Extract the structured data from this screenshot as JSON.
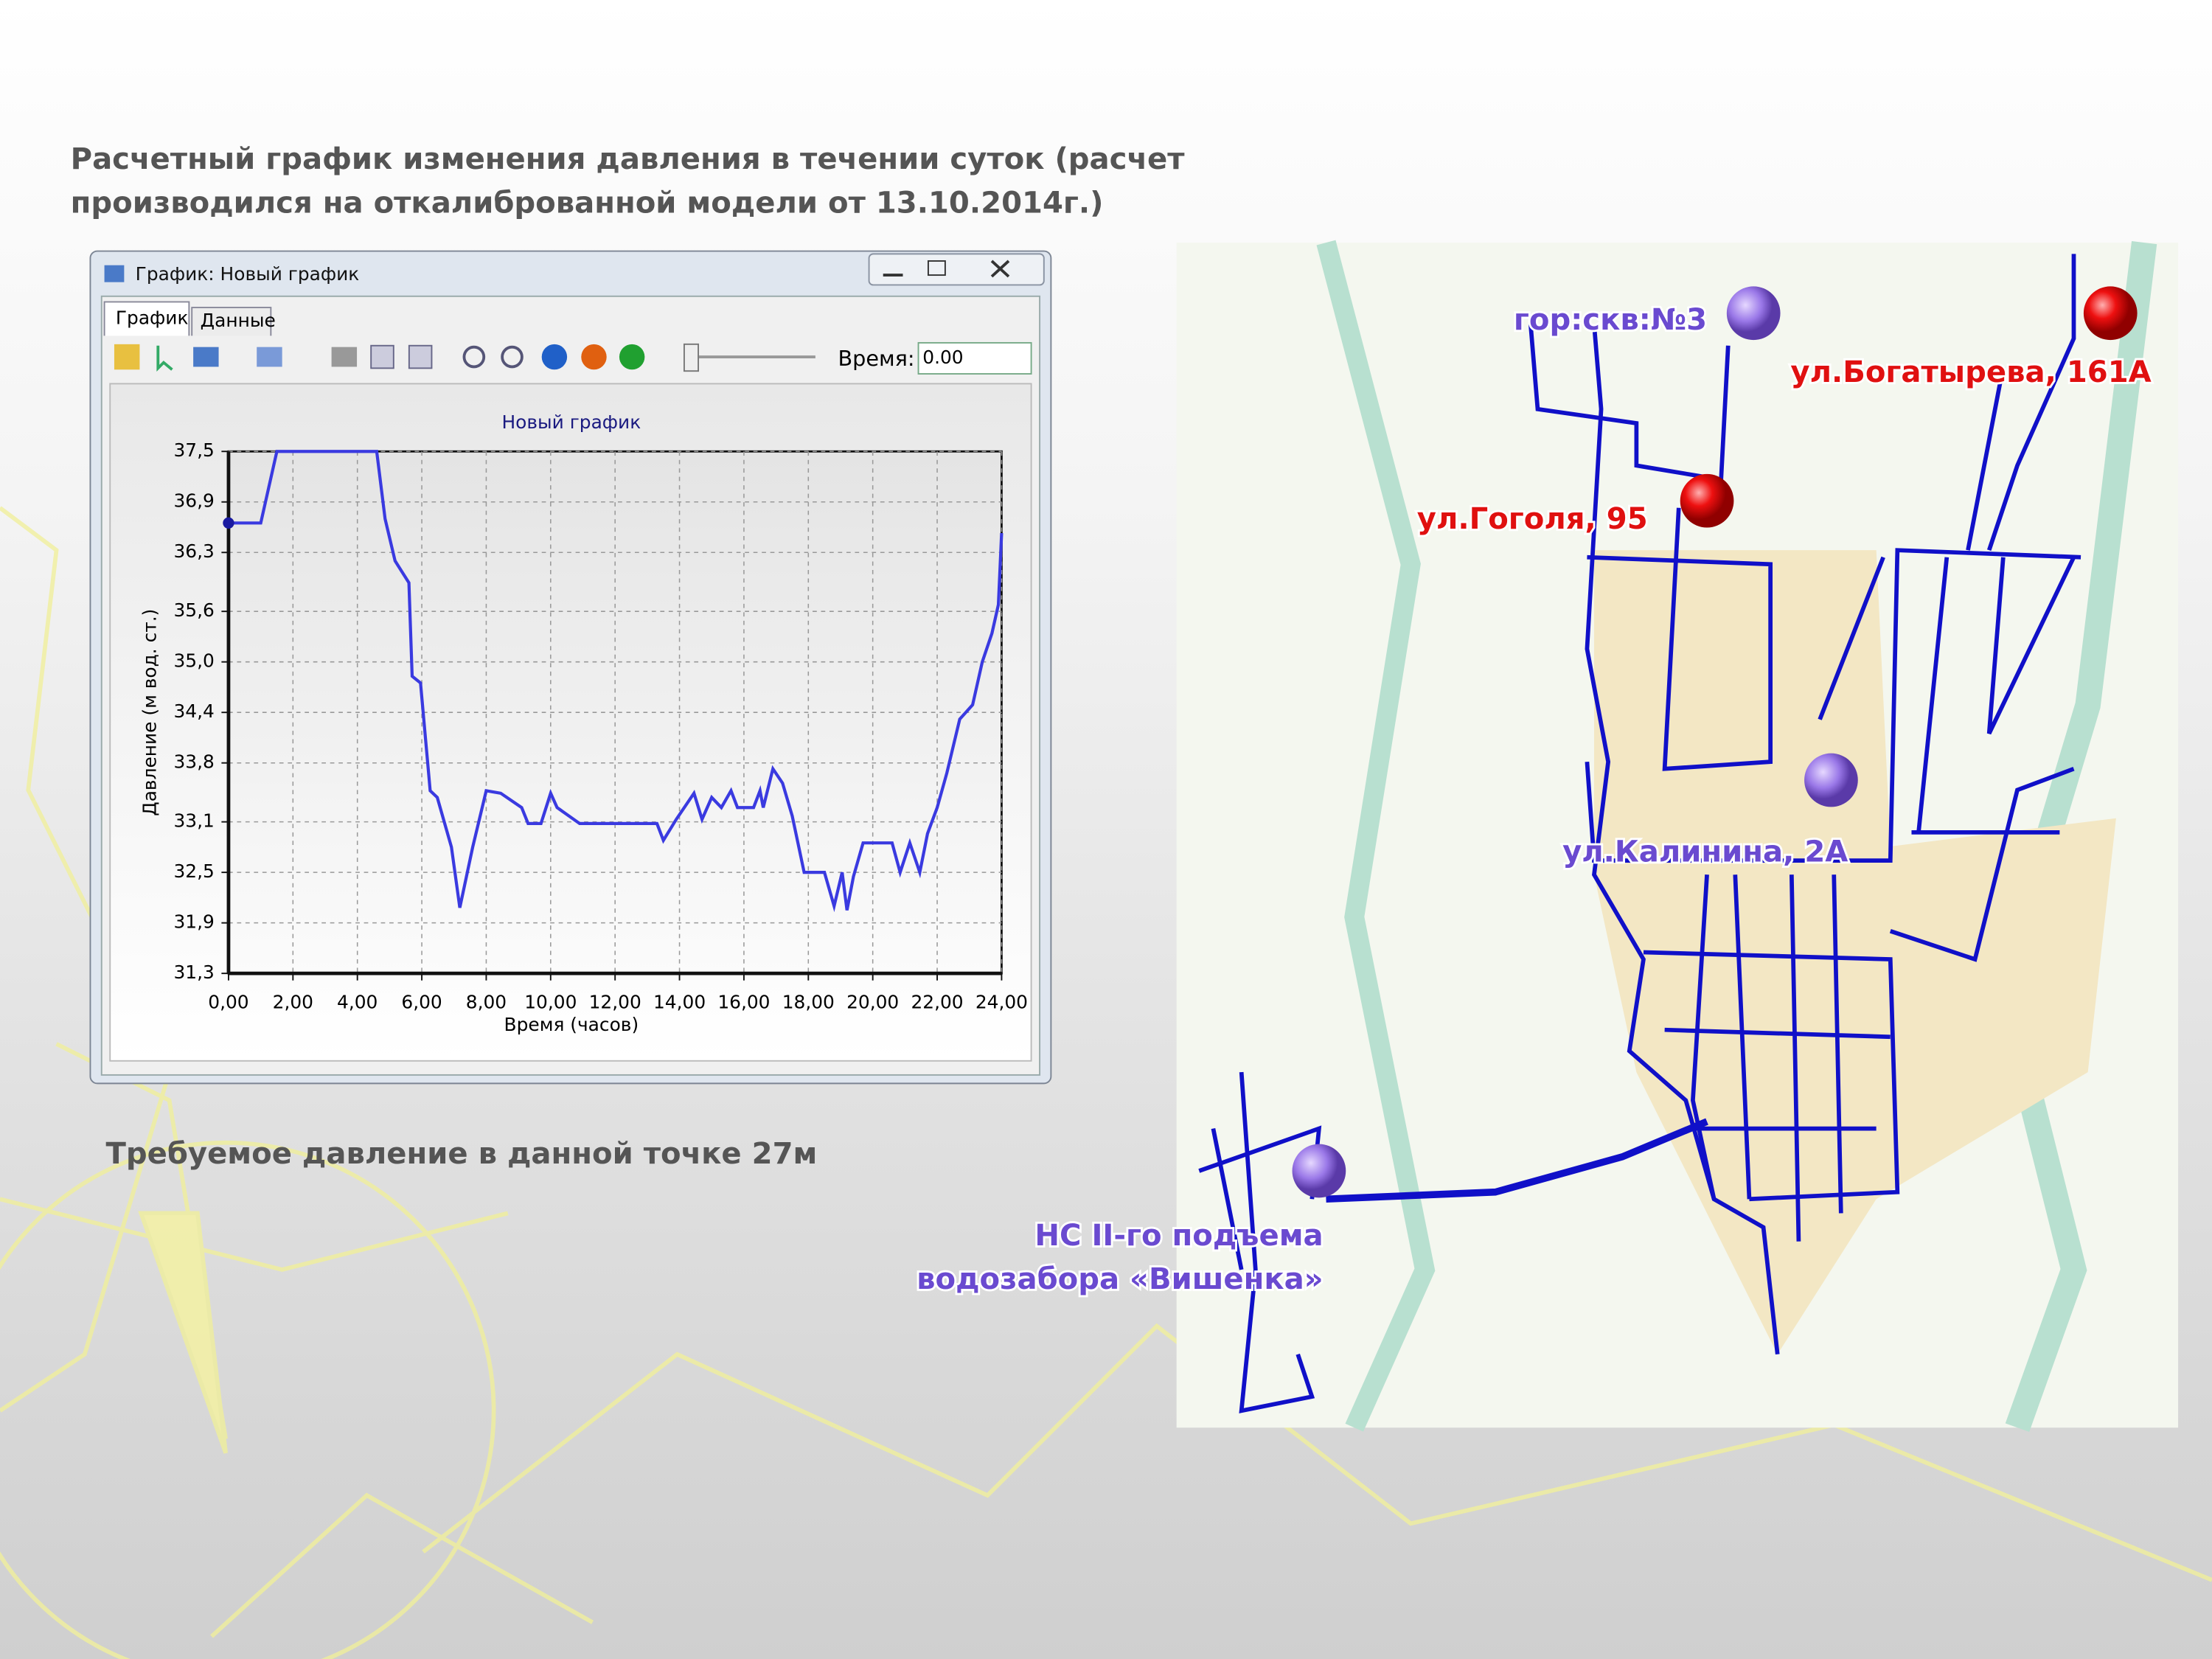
{
  "slide": {
    "title_lines": [
      "Расчетный график изменения давления в течении суток (расчет",
      "производился на откалиброванной модели от 13.10.2014г.)"
    ],
    "note": "Требуемое давление в данной точке 27м"
  },
  "window": {
    "title": "График: Новый график",
    "tabs": [
      "График",
      "Данные"
    ],
    "time_label": "Время:",
    "time_value": "0.00"
  },
  "chart_data": {
    "type": "line",
    "title": "Новый график",
    "x_label": "Время (часов)",
    "y_label": "Давление (м вод. ст.)",
    "color": "#3a3ae0",
    "grid": true,
    "x": [
      0,
      1.0,
      1.5,
      4.6,
      4.86,
      5.17,
      5.6,
      5.7,
      5.96,
      6.26,
      6.48,
      6.92,
      7.18,
      7.58,
      8.0,
      8.45,
      9.1,
      9.3,
      9.7,
      10.0,
      10.2,
      10.9,
      13.3,
      13.5,
      13.9,
      14.45,
      14.7,
      15.0,
      15.3,
      15.6,
      15.8,
      16.3,
      16.5,
      16.6,
      16.9,
      17.2,
      17.5,
      17.87,
      18.5,
      18.8,
      19.05,
      19.2,
      19.4,
      19.7,
      20.6,
      20.85,
      21.15,
      21.46,
      21.7,
      22.0,
      22.3,
      22.7,
      23.1,
      23.4,
      23.7,
      23.9,
      24.0
    ],
    "values": [
      36.65,
      36.65,
      37.5,
      37.5,
      36.7,
      36.2,
      35.94,
      34.83,
      34.75,
      33.47,
      33.39,
      32.8,
      32.08,
      32.8,
      33.47,
      33.44,
      33.27,
      33.08,
      33.08,
      33.44,
      33.27,
      33.08,
      33.08,
      32.88,
      33.13,
      33.44,
      33.13,
      33.39,
      33.27,
      33.47,
      33.27,
      33.27,
      33.47,
      33.27,
      33.73,
      33.56,
      33.17,
      32.5,
      32.5,
      32.1,
      32.5,
      32.05,
      32.45,
      32.85,
      32.85,
      32.5,
      32.85,
      32.5,
      32.96,
      33.27,
      33.68,
      34.32,
      34.49,
      35.0,
      35.34,
      35.68,
      36.53
    ],
    "xlim": [
      0,
      24
    ],
    "ylim": [
      31.3,
      37.5
    ],
    "xticks": [
      {
        "value": 0,
        "label": "0,00"
      },
      {
        "value": 2,
        "label": "2,00"
      },
      {
        "value": 4,
        "label": "4,00"
      },
      {
        "value": 6,
        "label": "6,00"
      },
      {
        "value": 8,
        "label": "8,00"
      },
      {
        "value": 10,
        "label": "10,00"
      },
      {
        "value": 12,
        "label": "12,00"
      },
      {
        "value": 14,
        "label": "14,00"
      },
      {
        "value": 16,
        "label": "16,00"
      },
      {
        "value": 18,
        "label": "18,00"
      },
      {
        "value": 20,
        "label": "20,00"
      },
      {
        "value": 22,
        "label": "22,00"
      },
      {
        "value": 24,
        "label": "24,00"
      }
    ],
    "yticks": [
      {
        "value": 31.3,
        "label": "31,3"
      },
      {
        "value": 31.9,
        "label": "31,9"
      },
      {
        "value": 32.5,
        "label": "32,5"
      },
      {
        "value": 33.1,
        "label": "33,1"
      },
      {
        "value": 33.8,
        "label": "33,8"
      },
      {
        "value": 34.4,
        "label": "34,4"
      },
      {
        "value": 35.0,
        "label": "35,0"
      },
      {
        "value": 35.6,
        "label": "35,6"
      },
      {
        "value": 36.3,
        "label": "36,3"
      },
      {
        "value": 36.9,
        "label": "36,9"
      },
      {
        "value": 37.5,
        "label": "37,5"
      }
    ]
  },
  "map": {
    "labels": [
      "гор:скв:№3",
      "ул.Богатырева, 161А",
      "ул.Гоголя, 95",
      "ул.Калинина, 2А",
      "НС II-го подъема",
      "водозабора «Вишенка»"
    ]
  }
}
